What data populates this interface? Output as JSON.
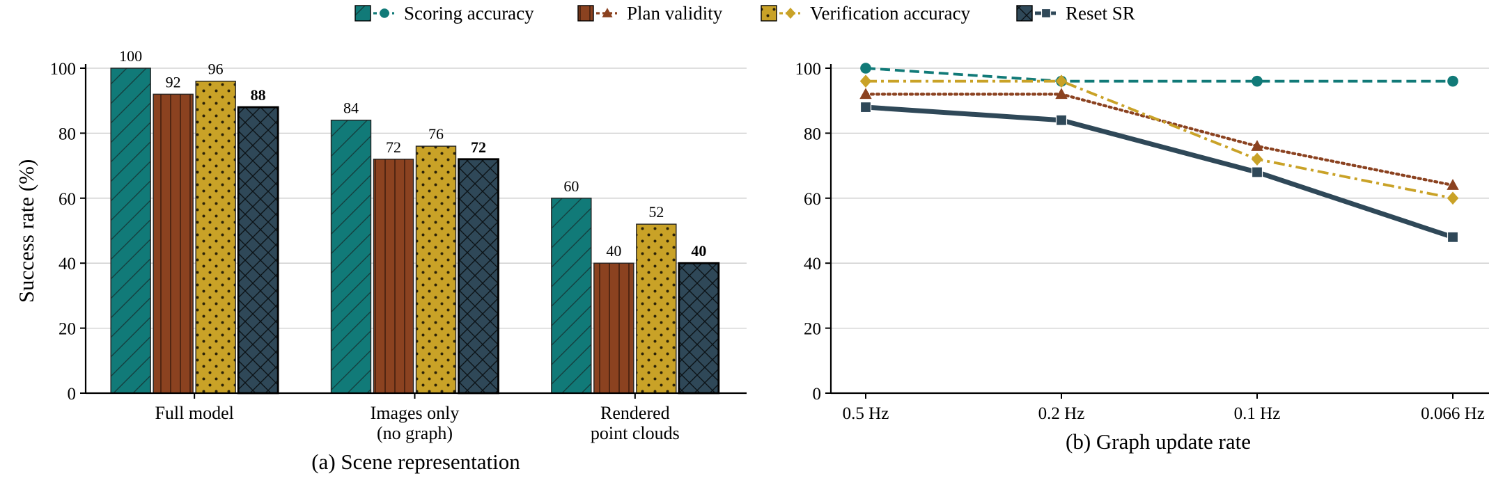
{
  "legend": [
    {
      "label": "Scoring accuracy",
      "color": "#117a78",
      "marker": "circle"
    },
    {
      "label": "Plan validity",
      "color": "#8b4220",
      "marker": "triangle"
    },
    {
      "label": "Verification accuracy",
      "color": "#c9a227",
      "marker": "diamond"
    },
    {
      "label": "Reset SR",
      "color": "#2f4858",
      "marker": "square"
    }
  ],
  "chart_data": [
    {
      "type": "bar",
      "caption": "(a) Scene representation",
      "ylabel": "Success rate (%)",
      "ylim": [
        0,
        100
      ],
      "yticks": [
        0,
        20,
        40,
        60,
        80,
        100
      ],
      "grid": true,
      "categories": [
        [
          "Full model"
        ],
        [
          "Images only",
          "(no graph)"
        ],
        [
          "Rendered",
          "point clouds"
        ]
      ],
      "series": [
        {
          "name": "Scoring accuracy",
          "color": "#117a78",
          "pattern": "diagonal",
          "values": [
            100,
            84,
            60
          ],
          "bold_labels": false
        },
        {
          "name": "Plan validity",
          "color": "#8b4220",
          "pattern": "vertical",
          "values": [
            92,
            72,
            40
          ],
          "bold_labels": false
        },
        {
          "name": "Verification accuracy",
          "color": "#c9a227",
          "pattern": "dots",
          "values": [
            96,
            76,
            52
          ],
          "bold_labels": false
        },
        {
          "name": "Reset SR",
          "color": "#2f4858",
          "pattern": "crosshatch",
          "values": [
            88,
            72,
            40
          ],
          "bold_labels": true
        }
      ]
    },
    {
      "type": "line",
      "caption": "(b) Graph update rate",
      "ylim": [
        0,
        100
      ],
      "yticks": [
        0,
        20,
        40,
        60,
        80,
        100
      ],
      "grid": true,
      "x": [
        "0.5 Hz",
        "0.2 Hz",
        "0.1 Hz",
        "0.066 Hz"
      ],
      "series": [
        {
          "name": "Scoring accuracy",
          "color": "#117a78",
          "dash": "dashed",
          "marker": "circle",
          "values": [
            100,
            96,
            96,
            96
          ]
        },
        {
          "name": "Plan validity",
          "color": "#8b4220",
          "dash": "dotted",
          "marker": "triangle",
          "values": [
            92,
            92,
            76,
            64
          ]
        },
        {
          "name": "Verification accuracy",
          "color": "#c9a227",
          "dash": "dashdot",
          "marker": "diamond",
          "values": [
            96,
            96,
            72,
            60
          ]
        },
        {
          "name": "Reset SR",
          "color": "#2f4858",
          "dash": "solid",
          "marker": "square",
          "values": [
            88,
            84,
            68,
            48
          ]
        }
      ]
    }
  ]
}
